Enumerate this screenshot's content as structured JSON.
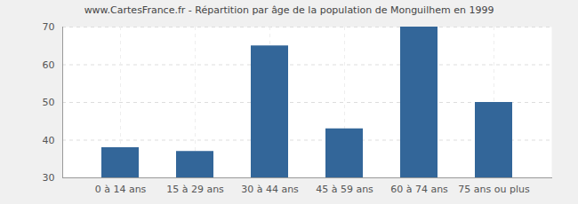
{
  "chart_data": {
    "type": "bar",
    "title": "www.CartesFrance.fr - Répartition par âge de la population de Monguilhem en 1999",
    "categories": [
      "0 à 14 ans",
      "15 à 29 ans",
      "30 à 44 ans",
      "45 à 59 ans",
      "60 à 74 ans",
      "75 ans ou plus"
    ],
    "values": [
      38,
      37,
      65,
      43,
      70,
      50
    ],
    "color": "#336699",
    "ylim": [
      30,
      70
    ],
    "yticks": [
      30,
      40,
      50,
      60,
      70
    ],
    "grid": true
  }
}
